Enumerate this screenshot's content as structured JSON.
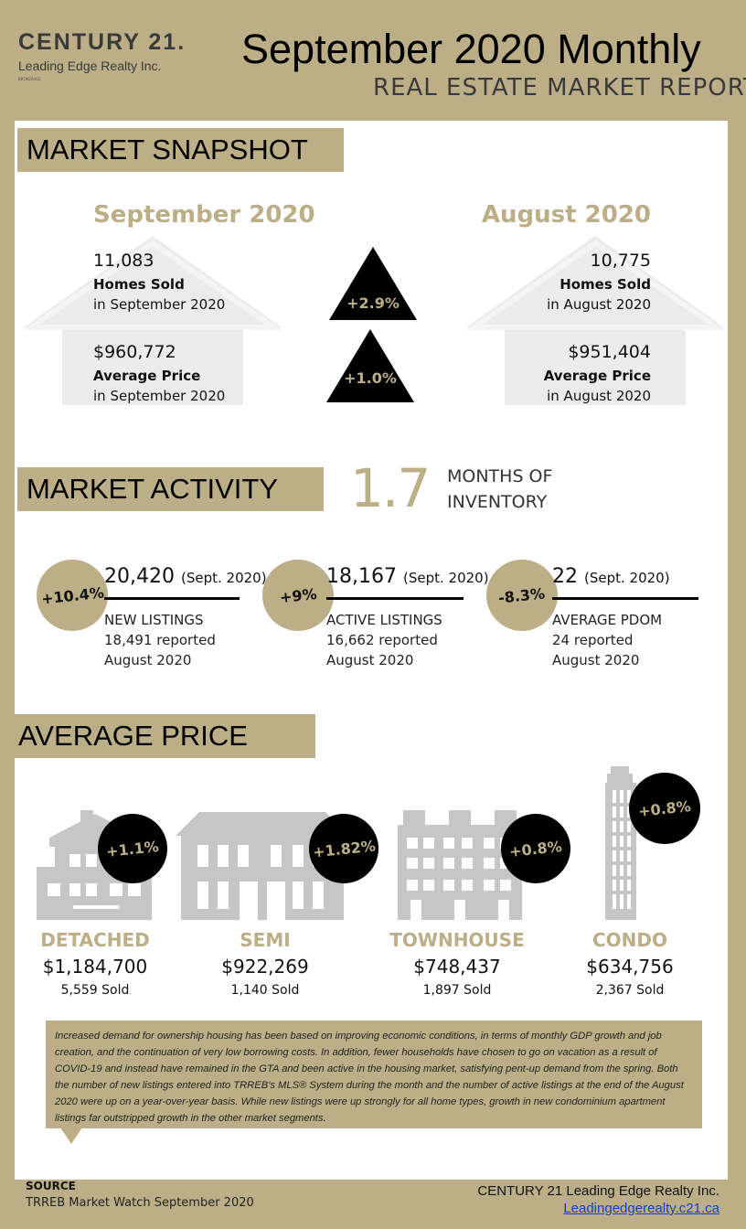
{
  "brand": {
    "name": "CENTURY 21.",
    "office": "Leading Edge Realty Inc.",
    "tagline": "BROKERAGE"
  },
  "header": {
    "title": "September 2020 Monthly",
    "subtitle": "REAL ESTATE MARKET REPORT"
  },
  "snapshot": {
    "section_label": "MARKET SNAPSHOT",
    "current": {
      "heading": "September 2020",
      "homes_sold_value": "11,083",
      "homes_sold_label": "Homes Sold",
      "homes_sold_period": "in September 2020",
      "avg_price_value": "$960,772",
      "avg_price_label": "Average Price",
      "avg_price_period": "in September 2020"
    },
    "previous": {
      "heading": "August 2020",
      "homes_sold_value": "10,775",
      "homes_sold_label": "Homes Sold",
      "homes_sold_period": "in August 2020",
      "avg_price_value": "$951,404",
      "avg_price_label": "Average Price",
      "avg_price_period": "in August 2020"
    },
    "change_homes_sold": "+2.9%",
    "change_avg_price": "+1.0%"
  },
  "activity": {
    "section_label": "MARKET ACTIVITY",
    "months_of_inventory": "1.7",
    "moi_label_line1": "MONTHS OF",
    "moi_label_line2": "INVENTORY",
    "items": [
      {
        "change": "+10.4%",
        "value": "20,420",
        "period": "(Sept. 2020)",
        "label": "NEW LISTINGS",
        "prev_value": "18,491",
        "prev_text": "reported",
        "prev_period": "August 2020"
      },
      {
        "change": "+9%",
        "value": "18,167",
        "period": "(Sept. 2020)",
        "label": "ACTIVE LISTINGS",
        "prev_value": "16,662",
        "prev_text": "reported",
        "prev_period": "August 2020"
      },
      {
        "change": "-8.3%",
        "value": "22",
        "period": "(Sept. 2020)",
        "label": "AVERAGE PDOM",
        "prev_value": "24",
        "prev_text": "reported",
        "prev_period": "August 2020"
      }
    ]
  },
  "avg_price": {
    "section_label": "AVERAGE PRICE",
    "categories": [
      {
        "name": "DETACHED",
        "change": "+1.1%",
        "price": "$1,184,700",
        "sold": "5,559 Sold",
        "icon": "detached-house-icon"
      },
      {
        "name": "SEMI",
        "change": "+1.82%",
        "price": "$922,269",
        "sold": "1,140 Sold",
        "icon": "semi-house-icon"
      },
      {
        "name": "TOWNHOUSE",
        "change": "+0.8%",
        "price": "$748,437",
        "sold": "1,897 Sold",
        "icon": "townhouse-icon"
      },
      {
        "name": "CONDO",
        "change": "+0.8%",
        "price": "$634,756",
        "sold": "2,367 Sold",
        "icon": "condo-tower-icon"
      }
    ]
  },
  "note": "Increased demand for ownership housing has been based on improving economic conditions, in terms of monthly GDP growth and job creation, and the continuation of very low borrowing costs. In addition, fewer households have chosen to go on vacation as a result of COVID-19 and instead have remained in the GTA and been active in the housing market, satisfying pent-up demand from the spring.  Both the number of new listings entered into TRREB's MLS® System during the month and the number of active listings at the end of the August 2020 were up on a year-over-year basis. While new listings were up strongly for all home types, growth in new condominium apartment listings far outstripped growth in the other market segments.",
  "footer": {
    "source_label": "SOURCE",
    "source_text": "TRREB Market Watch September 2020",
    "company": "CENTURY 21 Leading Edge Realty Inc.",
    "website": "Leadingedgerealty.c21.ca"
  },
  "colors": {
    "gold": "#bcae86",
    "black": "#000000",
    "icon_grey": "#c6c6c6",
    "house_grey": "#e6e6e6",
    "link_blue": "#1a3fbf"
  }
}
